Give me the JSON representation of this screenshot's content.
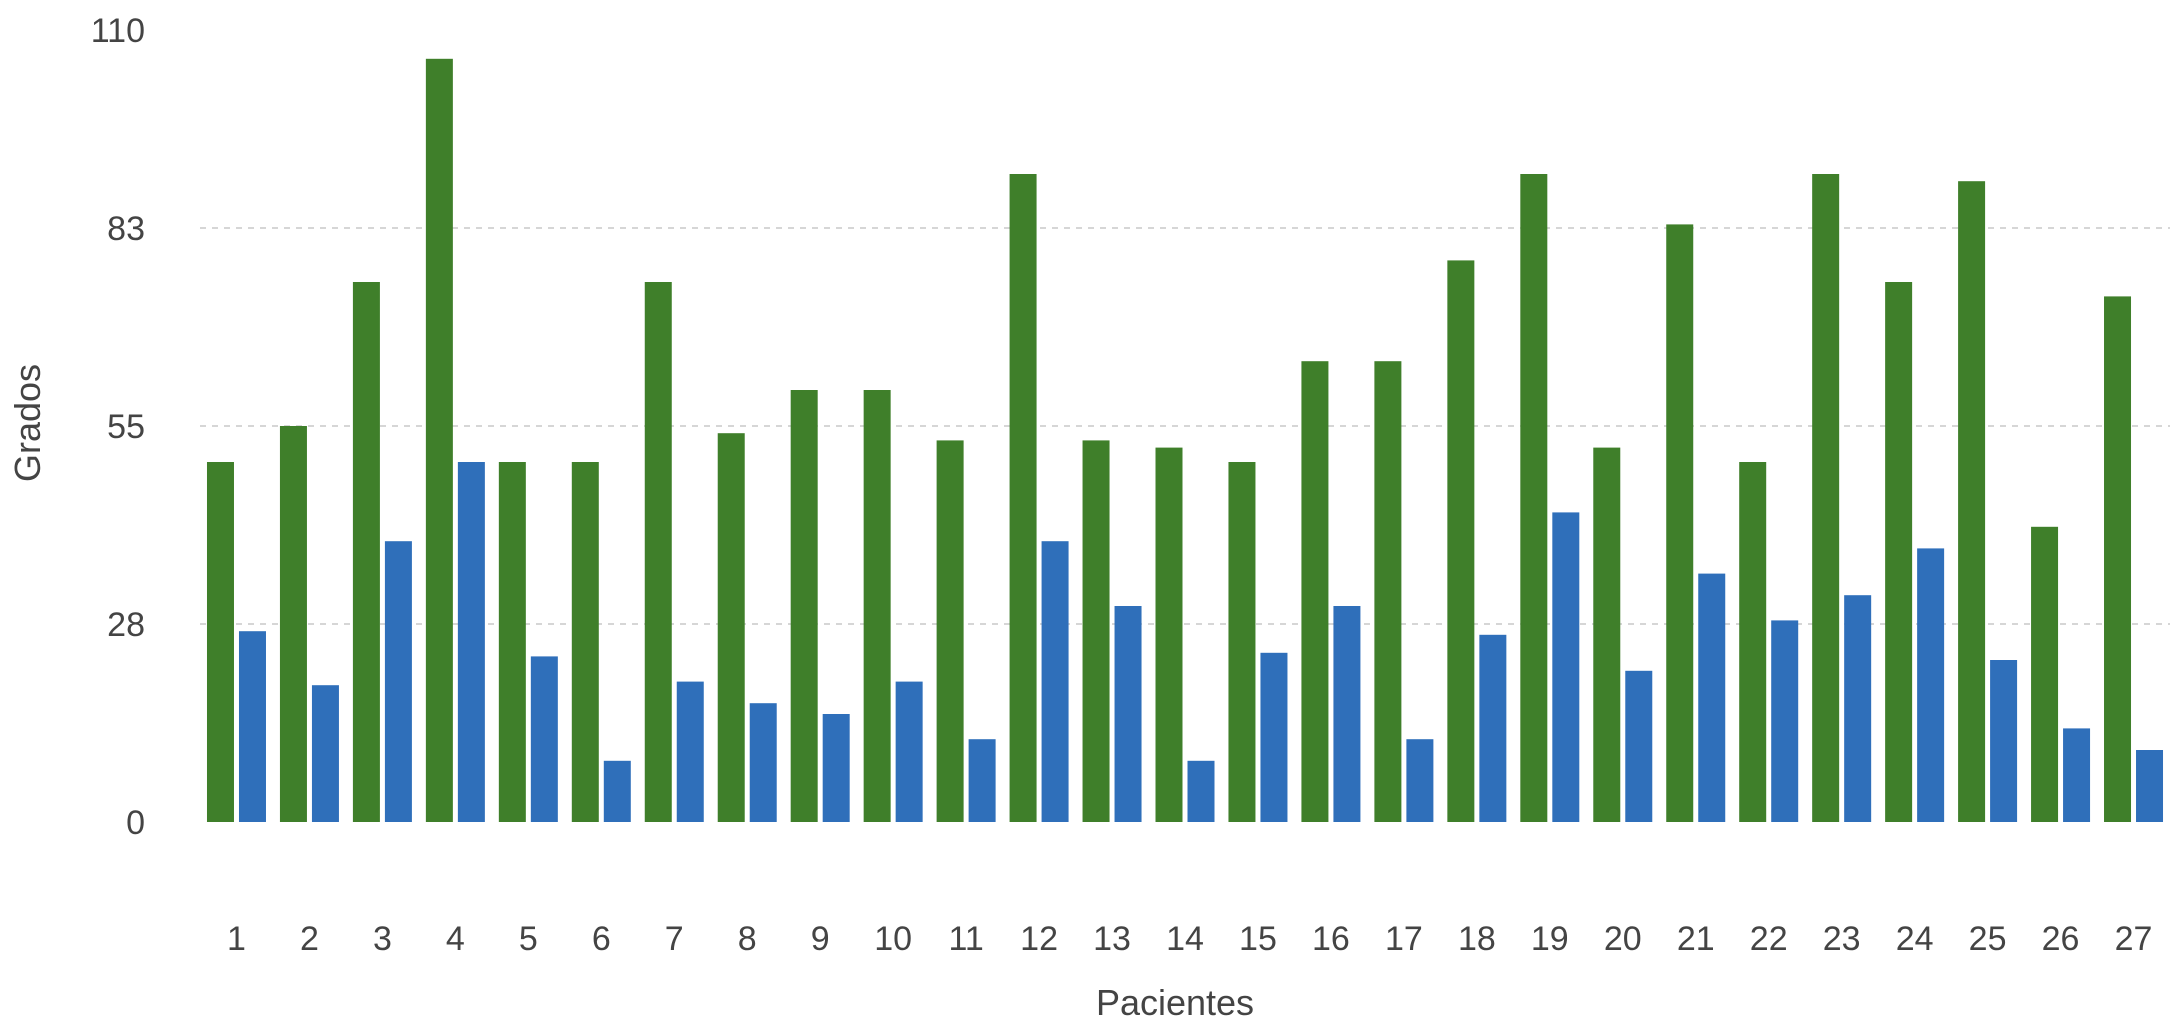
{
  "chart_data": {
    "type": "bar",
    "title": "",
    "xlabel": "Pacientes",
    "ylabel": "Grados",
    "ylim": [
      0,
      110
    ],
    "y_ticks": [
      "0",
      "28",
      "55",
      "83",
      "110"
    ],
    "y_tick_values": [
      0,
      27.5,
      55,
      82.5,
      110
    ],
    "grid": true,
    "legend": "none",
    "categories": [
      "1",
      "2",
      "3",
      "4",
      "5",
      "6",
      "7",
      "8",
      "9",
      "10",
      "11",
      "12",
      "13",
      "14",
      "15",
      "16",
      "17",
      "18",
      "19",
      "20",
      "21",
      "22",
      "23",
      "24",
      "25",
      "26",
      "27"
    ],
    "series": [
      {
        "color": "#3f7f2a",
        "values": [
          50,
          55,
          75,
          106,
          50,
          50,
          75,
          54,
          60,
          60,
          53,
          90,
          53,
          52,
          50,
          64,
          64,
          78,
          90,
          52,
          83,
          50,
          90,
          75,
          89,
          41,
          73
        ]
      },
      {
        "color": "#2f6fba",
        "values": [
          26.5,
          19,
          39,
          50,
          23,
          8.5,
          19.5,
          16.5,
          15,
          19.5,
          11.5,
          39,
          30,
          8.5,
          23.5,
          30,
          11.5,
          26,
          43,
          21,
          34.5,
          28,
          31.5,
          38,
          22.5,
          13,
          10
        ]
      }
    ]
  }
}
